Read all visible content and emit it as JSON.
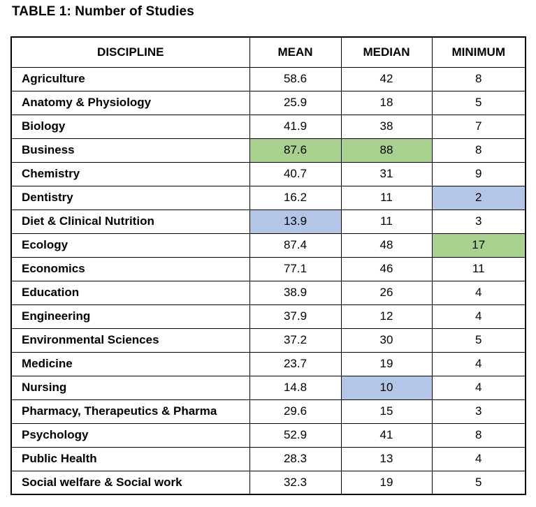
{
  "title": "TABLE 1: Number of Studies",
  "colors": {
    "highlight_green": "#a9d18e",
    "highlight_blue": "#b4c6e7",
    "border": "#000000",
    "text": "#000000",
    "background": "#ffffff"
  },
  "table": {
    "columns": [
      {
        "key": "discipline",
        "label": "DISCIPLINE"
      },
      {
        "key": "mean",
        "label": "MEAN"
      },
      {
        "key": "median",
        "label": "MEDIAN"
      },
      {
        "key": "minimum",
        "label": "MINIMUM"
      }
    ],
    "rows": [
      {
        "discipline": "Agriculture",
        "mean": "58.6",
        "median": "42",
        "minimum": "8",
        "highlights": {}
      },
      {
        "discipline": "Anatomy & Physiology",
        "mean": "25.9",
        "median": "18",
        "minimum": "5",
        "highlights": {}
      },
      {
        "discipline": "Biology",
        "mean": "41.9",
        "median": "38",
        "minimum": "7",
        "highlights": {}
      },
      {
        "discipline": "Business",
        "mean": "87.6",
        "median": "88",
        "minimum": "8",
        "highlights": {
          "mean": "green",
          "median": "green"
        }
      },
      {
        "discipline": "Chemistry",
        "mean": "40.7",
        "median": "31",
        "minimum": "9",
        "highlights": {}
      },
      {
        "discipline": "Dentistry",
        "mean": "16.2",
        "median": "11",
        "minimum": "2",
        "highlights": {
          "minimum": "blue"
        }
      },
      {
        "discipline": "Diet & Clinical Nutrition",
        "mean": "13.9",
        "median": "11",
        "minimum": "3",
        "highlights": {
          "mean": "blue"
        }
      },
      {
        "discipline": "Ecology",
        "mean": "87.4",
        "median": "48",
        "minimum": "17",
        "highlights": {
          "minimum": "green"
        }
      },
      {
        "discipline": "Economics",
        "mean": "77.1",
        "median": "46",
        "minimum": "11",
        "highlights": {}
      },
      {
        "discipline": "Education",
        "mean": "38.9",
        "median": "26",
        "minimum": "4",
        "highlights": {}
      },
      {
        "discipline": "Engineering",
        "mean": "37.9",
        "median": "12",
        "minimum": "4",
        "highlights": {}
      },
      {
        "discipline": "Environmental Sciences",
        "mean": "37.2",
        "median": "30",
        "minimum": "5",
        "highlights": {}
      },
      {
        "discipline": "Medicine",
        "mean": "23.7",
        "median": "19",
        "minimum": "4",
        "highlights": {}
      },
      {
        "discipline": "Nursing",
        "mean": "14.8",
        "median": "10",
        "minimum": "4",
        "highlights": {
          "median": "blue"
        }
      },
      {
        "discipline": "Pharmacy, Therapeutics & Pharma",
        "mean": "29.6",
        "median": "15",
        "minimum": "3",
        "highlights": {}
      },
      {
        "discipline": "Psychology",
        "mean": "52.9",
        "median": "41",
        "minimum": "8",
        "highlights": {}
      },
      {
        "discipline": "Public Health",
        "mean": "28.3",
        "median": "13",
        "minimum": "4",
        "highlights": {}
      },
      {
        "discipline": "Social welfare & Social work",
        "mean": "32.3",
        "median": "19",
        "minimum": "5",
        "highlights": {}
      }
    ]
  },
  "chart_data": {
    "type": "table",
    "title": "TABLE 1: Number of Studies",
    "columns": [
      "DISCIPLINE",
      "MEAN",
      "MEDIAN",
      "MINIMUM"
    ],
    "rows": [
      [
        "Agriculture",
        58.6,
        42,
        8
      ],
      [
        "Anatomy & Physiology",
        25.9,
        18,
        5
      ],
      [
        "Biology",
        41.9,
        38,
        7
      ],
      [
        "Business",
        87.6,
        88,
        8
      ],
      [
        "Chemistry",
        40.7,
        31,
        9
      ],
      [
        "Dentistry",
        16.2,
        11,
        2
      ],
      [
        "Diet & Clinical Nutrition",
        13.9,
        11,
        3
      ],
      [
        "Ecology",
        87.4,
        48,
        17
      ],
      [
        "Economics",
        77.1,
        46,
        11
      ],
      [
        "Education",
        38.9,
        26,
        4
      ],
      [
        "Engineering",
        37.9,
        12,
        4
      ],
      [
        "Environmental Sciences",
        37.2,
        30,
        5
      ],
      [
        "Medicine",
        23.7,
        19,
        4
      ],
      [
        "Nursing",
        14.8,
        10,
        4
      ],
      [
        "Pharmacy, Therapeutics & Pharma",
        29.6,
        15,
        3
      ],
      [
        "Psychology",
        52.9,
        41,
        8
      ],
      [
        "Public Health",
        28.3,
        13,
        4
      ],
      [
        "Social welfare & Social work",
        32.3,
        19,
        5
      ]
    ]
  }
}
